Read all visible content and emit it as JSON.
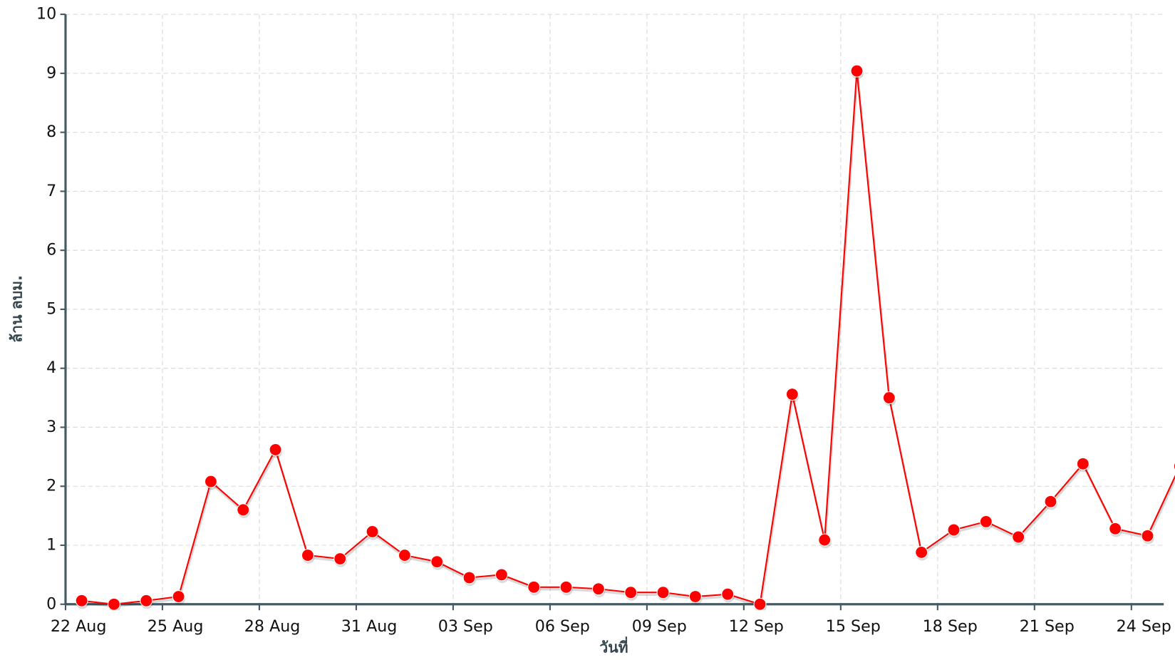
{
  "chart_data": {
    "type": "line",
    "x_label": "วันที่",
    "y_label": "ล้าน ลบม.",
    "categories": [
      "22 Aug",
      null,
      null,
      "25 Aug",
      null,
      null,
      "28 Aug",
      null,
      null,
      "31 Aug",
      null,
      null,
      "03 Sep",
      null,
      null,
      "06 Sep",
      null,
      null,
      "09 Sep",
      null,
      null,
      "12 Sep",
      null,
      null,
      "15 Sep",
      null,
      null,
      "18 Sep",
      null,
      null,
      "21 Sep",
      null,
      null,
      "24 Sep",
      null
    ],
    "series": [
      {
        "color": "#ff0000",
        "values": [
          0.06,
          0.0,
          0.06,
          0.13,
          2.08,
          1.6,
          2.62,
          0.83,
          0.77,
          1.23,
          0.83,
          0.72,
          0.45,
          0.5,
          0.29,
          0.29,
          0.26,
          0.2,
          0.2,
          0.13,
          0.17,
          0.0,
          3.56,
          1.09,
          9.04,
          3.5,
          0.88,
          1.26,
          1.4,
          1.14,
          1.74,
          2.38,
          1.28,
          1.16,
          2.34
        ]
      }
    ],
    "ylim": [
      0,
      10
    ],
    "yticks": [
      0,
      1,
      2,
      3,
      4,
      5,
      6,
      7,
      8,
      9,
      10
    ],
    "grid": true
  }
}
